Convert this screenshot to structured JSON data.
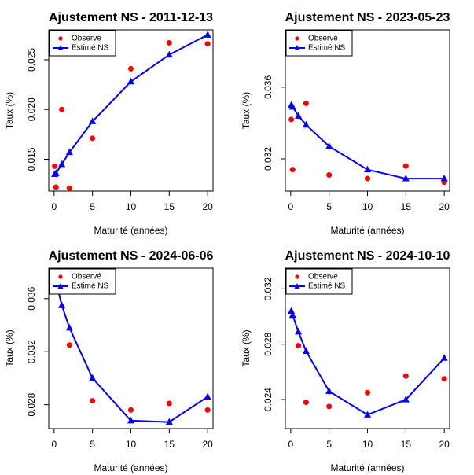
{
  "chart_data": [
    {
      "type": "line",
      "title": "Ajustement NS - 2011-12-13",
      "xlabel": "Maturité (années)",
      "ylabel": "Taux (%)",
      "xlim": [
        -0.7,
        20.7
      ],
      "ylim": [
        0.0118,
        0.028
      ],
      "xticks": [
        0,
        5,
        10,
        15,
        20
      ],
      "yticks": [
        0.015,
        0.02,
        0.025
      ],
      "ytick_labels": [
        "0.015",
        "0.020",
        "0.025"
      ],
      "legend": {
        "position": "top-left",
        "entries": [
          "Observé",
          "Estimé NS"
        ]
      },
      "series": [
        {
          "name": "Observé",
          "color": "#ff0000",
          "kind": "points",
          "x": [
            0.08,
            0.25,
            1,
            2,
            5,
            10,
            15,
            20
          ],
          "y": [
            0.0143,
            0.0122,
            0.02,
            0.0121,
            0.0171,
            0.0241,
            0.0267,
            0.0266
          ]
        },
        {
          "name": "Estimé NS",
          "color": "#0000ff",
          "kind": "line",
          "x": [
            0.08,
            0.25,
            1,
            2,
            5,
            10,
            15,
            20
          ],
          "y": [
            0.0135,
            0.0136,
            0.0145,
            0.0157,
            0.0188,
            0.0228,
            0.0255,
            0.0275
          ]
        }
      ]
    },
    {
      "type": "line",
      "title": "Ajustement NS - 2023-05-23",
      "xlabel": "Maturité (années)",
      "ylabel": "Taux (%)",
      "xlim": [
        -0.7,
        20.7
      ],
      "ylim": [
        0.0302,
        0.0392
      ],
      "xticks": [
        0,
        5,
        10,
        15,
        20
      ],
      "yticks": [
        0.032,
        0.036
      ],
      "ytick_labels": [
        "0.032",
        "0.036"
      ],
      "legend": {
        "position": "top-left",
        "entries": [
          "Observé",
          "Estimé NS"
        ]
      },
      "series": [
        {
          "name": "Observé",
          "color": "#ff0000",
          "kind": "points",
          "x": [
            0.08,
            0.25,
            0.5,
            1,
            2,
            5,
            10,
            15,
            20
          ],
          "y": [
            0.0342,
            0.0314,
            0.0387,
            0.039,
            0.0351,
            0.0311,
            0.0309,
            0.0316,
            0.0307
          ]
        },
        {
          "name": "Estimé NS",
          "color": "#0000ff",
          "kind": "line",
          "x": [
            0.08,
            0.25,
            1,
            2,
            5,
            10,
            15,
            20
          ],
          "y": [
            0.035,
            0.0349,
            0.0344,
            0.0339,
            0.0327,
            0.0314,
            0.0309,
            0.0309
          ]
        }
      ]
    },
    {
      "type": "line",
      "title": "Ajustement NS - 2024-06-06",
      "xlabel": "Maturité (années)",
      "ylabel": "Taux (%)",
      "xlim": [
        -0.7,
        20.7
      ],
      "ylim": [
        0.0262,
        0.0383
      ],
      "xticks": [
        0,
        5,
        10,
        15,
        20
      ],
      "yticks": [
        0.028,
        0.032,
        0.036
      ],
      "ytick_labels": [
        "0.028",
        "0.032",
        "0.036"
      ],
      "legend": {
        "position": "top-left",
        "entries": [
          "Observé",
          "Estimé NS"
        ]
      },
      "series": [
        {
          "name": "Observé",
          "color": "#ff0000",
          "kind": "points",
          "x": [
            0.08,
            0.25,
            0.5,
            1,
            2,
            5,
            10,
            15,
            20
          ],
          "y": [
            0.0377,
            0.0374,
            0.0373,
            0.0371,
            0.0325,
            0.0283,
            0.0276,
            0.0281,
            0.0276
          ]
        },
        {
          "name": "Estimé NS",
          "color": "#0000ff",
          "kind": "line",
          "x": [
            0.08,
            0.25,
            0.5,
            1,
            2,
            5,
            10,
            15,
            20
          ],
          "y": [
            0.0372,
            0.037,
            0.0367,
            0.0355,
            0.0338,
            0.03,
            0.0268,
            0.0267,
            0.0286
          ]
        }
      ]
    },
    {
      "type": "line",
      "title": "Ajustement NS - 2024-10-10",
      "xlabel": "Maturité (années)",
      "ylabel": "Taux (%)",
      "xlim": [
        -0.7,
        20.7
      ],
      "ylim": [
        0.0219,
        0.0335
      ],
      "xticks": [
        0,
        5,
        10,
        15,
        20
      ],
      "yticks": [
        0.024,
        0.028,
        0.032
      ],
      "ytick_labels": [
        "0.024",
        "0.028",
        "0.032"
      ],
      "legend": {
        "position": "top-left",
        "entries": [
          "Observé",
          "Estimé NS"
        ]
      },
      "series": [
        {
          "name": "Observé",
          "color": "#ff0000",
          "kind": "points",
          "x": [
            0.08,
            0.25,
            0.5,
            1,
            2,
            5,
            10,
            15,
            20
          ],
          "y": [
            0.0318,
            0.0326,
            0.0323,
            0.0279,
            0.0238,
            0.0235,
            0.0245,
            0.0257,
            0.0255
          ]
        },
        {
          "name": "Estimé NS",
          "color": "#0000ff",
          "kind": "line",
          "x": [
            0.08,
            0.25,
            1,
            2,
            5,
            10,
            15,
            20
          ],
          "y": [
            0.0304,
            0.0301,
            0.0289,
            0.0275,
            0.0246,
            0.0229,
            0.024,
            0.027
          ]
        }
      ]
    }
  ]
}
